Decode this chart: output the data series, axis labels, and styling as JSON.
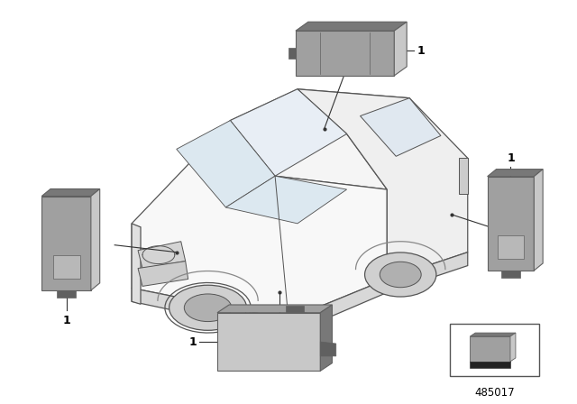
{
  "background_color": "#ffffff",
  "car_color": "#555555",
  "sensor_light": "#c8c8c8",
  "sensor_mid": "#a0a0a0",
  "sensor_dark": "#787878",
  "sensor_darkest": "#606060",
  "part_number": "485017",
  "fig_width": 6.4,
  "fig_height": 4.48,
  "dpi": 100
}
